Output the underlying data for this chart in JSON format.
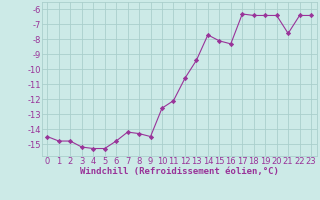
{
  "x": [
    0,
    1,
    2,
    3,
    4,
    5,
    6,
    7,
    8,
    9,
    10,
    11,
    12,
    13,
    14,
    15,
    16,
    17,
    18,
    19,
    20,
    21,
    22,
    23
  ],
  "y": [
    -14.5,
    -14.8,
    -14.8,
    -15.2,
    -15.3,
    -15.3,
    -14.8,
    -14.2,
    -14.3,
    -14.5,
    -12.6,
    -12.1,
    -10.6,
    -9.4,
    -7.7,
    -8.1,
    -8.3,
    -6.3,
    -6.4,
    -6.4,
    -6.4,
    -7.6,
    -6.4,
    -6.4
  ],
  "xlim": [
    -0.5,
    23.5
  ],
  "ylim": [
    -15.8,
    -5.5
  ],
  "yticks": [
    -6,
    -7,
    -8,
    -9,
    -10,
    -11,
    -12,
    -13,
    -14,
    -15
  ],
  "xticks": [
    0,
    1,
    2,
    3,
    4,
    5,
    6,
    7,
    8,
    9,
    10,
    11,
    12,
    13,
    14,
    15,
    16,
    17,
    18,
    19,
    20,
    21,
    22,
    23
  ],
  "xlabel": "Windchill (Refroidissement éolien,°C)",
  "line_color": "#993399",
  "marker": "D",
  "marker_size": 2.2,
  "bg_color": "#cceae7",
  "grid_color": "#aacfcc",
  "tick_color": "#993399",
  "label_color": "#993399",
  "xlabel_fontsize": 6.5,
  "tick_fontsize": 6.0
}
